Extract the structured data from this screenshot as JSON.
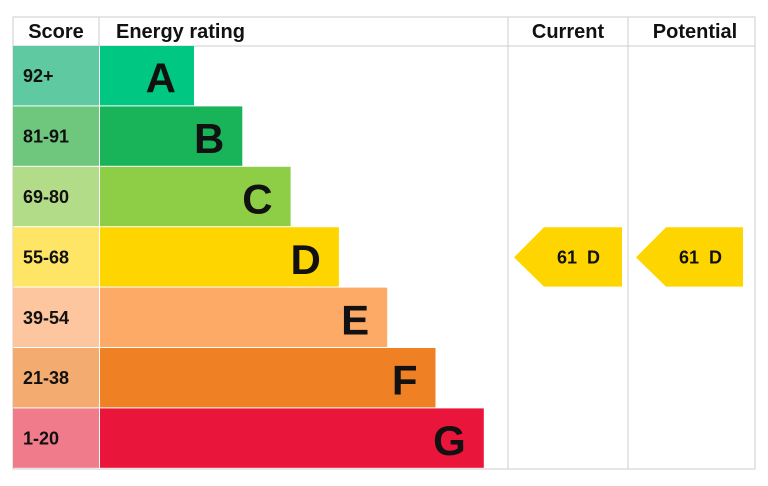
{
  "header": {
    "score": "Score",
    "energy_rating": "Energy rating",
    "current": "Current",
    "potential": "Potential"
  },
  "bands": [
    {
      "score": "92+",
      "letter": "A",
      "color": "#00c781",
      "score_color": "#5fc9a1"
    },
    {
      "score": "81-91",
      "letter": "B",
      "color": "#19b459",
      "score_color": "#6fc67d"
    },
    {
      "score": "69-80",
      "letter": "C",
      "color": "#8dce46",
      "score_color": "#b3dc88"
    },
    {
      "score": "55-68",
      "letter": "D",
      "color": "#ffd500",
      "score_color": "#ffe566"
    },
    {
      "score": "39-54",
      "letter": "E",
      "color": "#fcaa65",
      "score_color": "#fdc69f"
    },
    {
      "score": "21-38",
      "letter": "F",
      "color": "#ef8023",
      "score_color": "#f4ab6f"
    },
    {
      "score": "1-20",
      "letter": "G",
      "color": "#e9153b",
      "score_color": "#f07b8b"
    }
  ],
  "current": {
    "value": 61,
    "band": "D"
  },
  "potential": {
    "value": 61,
    "band": "D"
  }
}
